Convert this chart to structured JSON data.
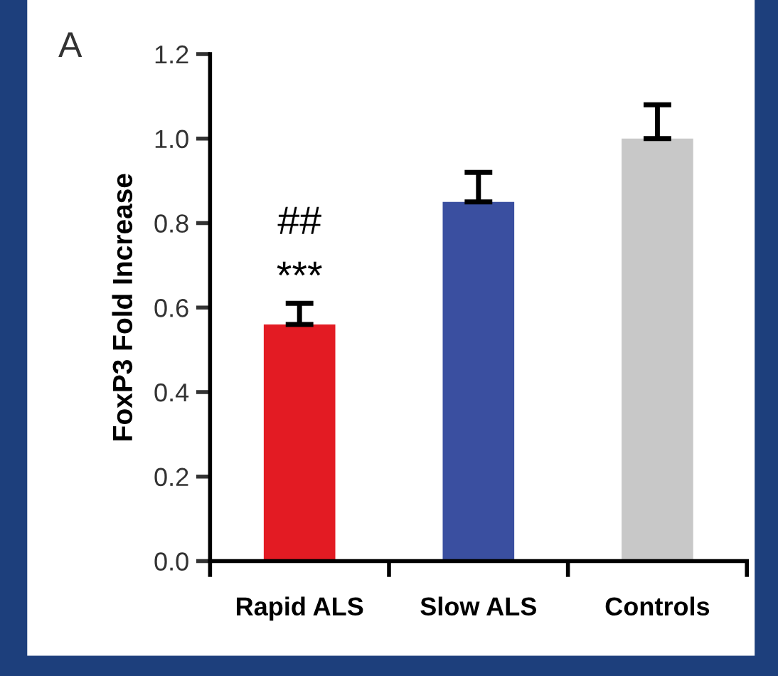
{
  "chart_data": {
    "type": "bar",
    "ylabel": "FoxP3 Fold Increase",
    "categories": [
      "Rapid ALS",
      "Slow ALS",
      "Controls"
    ],
    "values": [
      0.56,
      0.85,
      1.0
    ],
    "errors": [
      0.05,
      0.07,
      0.08
    ],
    "colors": [
      "#e31b23",
      "#3a4fa0",
      "#c8c8c8"
    ],
    "ylim": [
      0,
      1.2
    ],
    "yticks": [
      {
        "value": 0,
        "label": "0.0"
      },
      0.2,
      0.4,
      0.6,
      0.8,
      {
        "value": 1,
        "label": "1.0"
      },
      1.2
    ],
    "grid": false,
    "legend": false,
    "annotations": [
      "A",
      "***",
      "##"
    ]
  }
}
